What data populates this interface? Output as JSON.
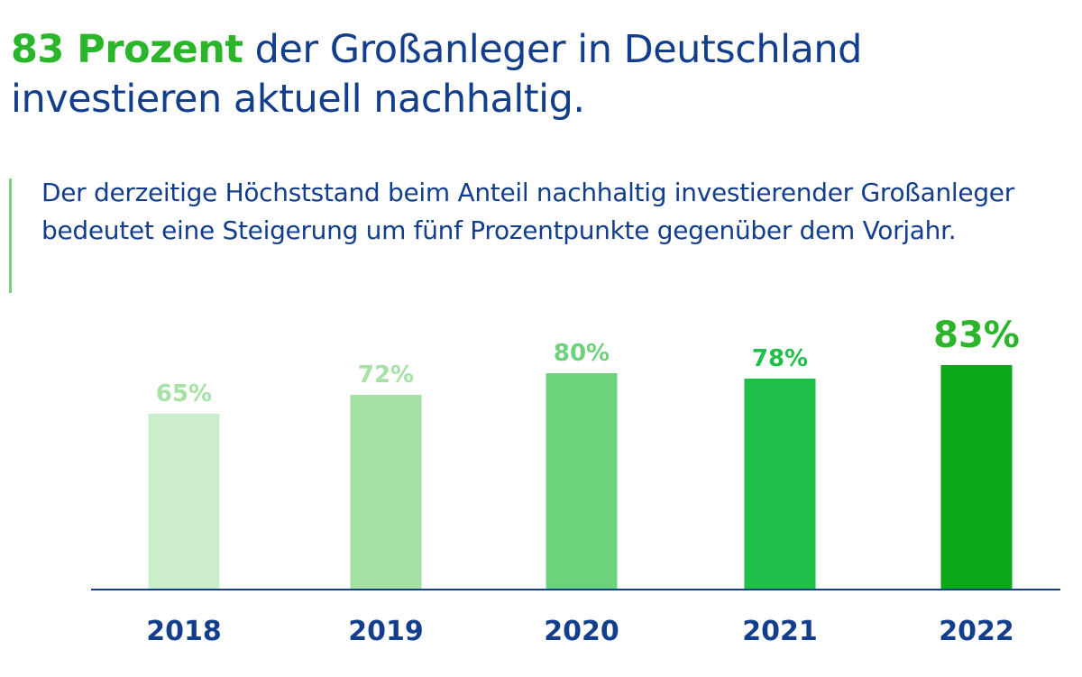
{
  "headline": {
    "accent": "83 Prozent",
    "rest": " der Großanleger in Deutschland investieren aktuell nachhaltig."
  },
  "subtitle": "Der derzeitige Höchststand beim Anteil nachhaltig investierender Großanleger bedeutet eine Steigerung um fünf Prozentpunkte gegenüber dem Vorjahr.",
  "colors": {
    "title": "#123e8c",
    "accent": "#2bb52b",
    "axis": "#123e8c",
    "bars": [
      "#cdeecd",
      "#a6e2a6",
      "#6cd37c",
      "#1fbf4a",
      "#0aa818"
    ]
  },
  "chart_data": {
    "type": "bar",
    "categories": [
      "2018",
      "2019",
      "2020",
      "2021",
      "2022"
    ],
    "values": [
      65,
      72,
      80,
      78,
      83
    ],
    "data_labels": [
      "65%",
      "72%",
      "80%",
      "78%",
      "83%"
    ],
    "unit": "%",
    "highlight_index": 4,
    "ylim": [
      0,
      100
    ],
    "grid": false,
    "legend": "none"
  }
}
